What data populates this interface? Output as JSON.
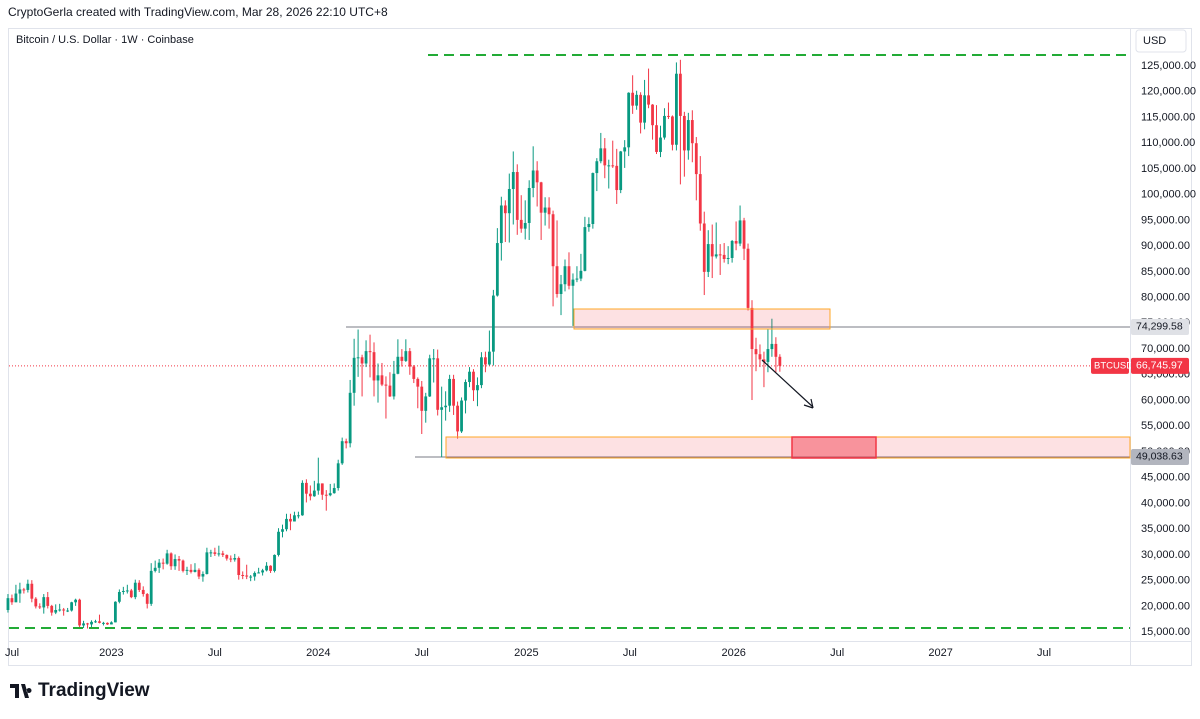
{
  "header": {
    "text": "CryptoGerla created with TradingView.com, Mar 28, 2026 22:10 UTC+8"
  },
  "footer": {
    "logo": "TradingView"
  },
  "chart_data": {
    "type": "candlestick",
    "title": "Bitcoin / U.S. Dollar · 1W · Coinbase",
    "currency": "USD",
    "up_color": "#089981",
    "down_color": "#f23645",
    "grid": false,
    "xlim": [
      -2,
      282
    ],
    "xticks": [
      {
        "value": -0.4,
        "label": "Jul"
      },
      {
        "value": 26,
        "label": "2023"
      },
      {
        "value": 52,
        "label": "Jul"
      },
      {
        "value": 78,
        "label": "2024"
      },
      {
        "value": 104,
        "label": "Jul"
      },
      {
        "value": 130.3,
        "label": "2025"
      },
      {
        "value": 156.3,
        "label": "Jul"
      },
      {
        "value": 182.4,
        "label": "2026"
      },
      {
        "value": 208.4,
        "label": "Jul"
      },
      {
        "value": 234.4,
        "label": "2027"
      },
      {
        "value": 260.4,
        "label": "Jul"
      }
    ],
    "ylim": [
      12500,
      128500
    ],
    "yticks": [
      {
        "value": 15000,
        "label": "15,000.00"
      },
      {
        "value": 20000,
        "label": "20,000.00"
      },
      {
        "value": 25000,
        "label": "25,000.00"
      },
      {
        "value": 30000,
        "label": "30,000.00"
      },
      {
        "value": 35000,
        "label": "35,000.00"
      },
      {
        "value": 40000,
        "label": "40,000.00"
      },
      {
        "value": 45000,
        "label": "45,000.00"
      },
      {
        "value": 50000,
        "label": "50,000.00"
      },
      {
        "value": 55000,
        "label": "55,000.00"
      },
      {
        "value": 60000,
        "label": "60,000.00"
      },
      {
        "value": 65000,
        "label": "65,000.00"
      },
      {
        "value": 70000,
        "label": "70,000.00"
      },
      {
        "value": 75000,
        "label": "75,000.00"
      },
      {
        "value": 80000,
        "label": "80,000.00"
      },
      {
        "value": 85000,
        "label": "85,000.00"
      },
      {
        "value": 90000,
        "label": "90,000.00"
      },
      {
        "value": 95000,
        "label": "95,000.00"
      },
      {
        "value": 100000,
        "label": "100,000.00"
      },
      {
        "value": 105000,
        "label": "105,000.00"
      },
      {
        "value": 110000,
        "label": "110,000.00"
      },
      {
        "value": 115000,
        "label": "115,000.00"
      },
      {
        "value": 120000,
        "label": "120,000.00"
      },
      {
        "value": 125000,
        "label": "125,000.00"
      }
    ],
    "levels": [
      {
        "value": 74299.58,
        "label": "74,299.58"
      },
      {
        "value": 49038.63,
        "label": "49,038.63"
      }
    ],
    "price_line": {
      "name": "BTCUSD",
      "value": 66745.97,
      "label": "66,745.97",
      "color": "#f23645"
    },
    "ohlc": [
      [
        19300,
        22400,
        18800,
        21600
      ],
      [
        21600,
        22300,
        20300,
        20800
      ],
      [
        20800,
        24200,
        20800,
        22500
      ],
      [
        22500,
        24600,
        20700,
        23300
      ],
      [
        23300,
        23600,
        22500,
        23200
      ],
      [
        23200,
        25200,
        22700,
        24400
      ],
      [
        24400,
        25100,
        20800,
        21500
      ],
      [
        21500,
        21800,
        19600,
        20000
      ],
      [
        20000,
        20600,
        19500,
        19800
      ],
      [
        19800,
        22400,
        18600,
        21800
      ],
      [
        21800,
        22800,
        19600,
        20100
      ],
      [
        20100,
        20300,
        18200,
        18800
      ],
      [
        18800,
        20400,
        18500,
        19300
      ],
      [
        19300,
        20500,
        19000,
        19400
      ],
      [
        19400,
        19700,
        18200,
        19200
      ],
      [
        19200,
        19700,
        18900,
        19200
      ],
      [
        19200,
        20900,
        19000,
        20800
      ],
      [
        20800,
        21500,
        20100,
        21300
      ],
      [
        21300,
        21500,
        15600,
        16300
      ],
      [
        16300,
        17200,
        15800,
        16700
      ],
      [
        16700,
        16800,
        15700,
        16500
      ],
      [
        16500,
        17300,
        15900,
        17000
      ],
      [
        17000,
        17400,
        16800,
        17100
      ],
      [
        17100,
        18400,
        16700,
        16800
      ],
      [
        16800,
        17000,
        16300,
        16800
      ],
      [
        16800,
        16900,
        16400,
        16500
      ],
      [
        16500,
        17100,
        16500,
        16900
      ],
      [
        16900,
        21000,
        16900,
        20900
      ],
      [
        20900,
        23300,
        20600,
        22800
      ],
      [
        22800,
        23800,
        22300,
        23000
      ],
      [
        23000,
        24200,
        22500,
        23100
      ],
      [
        23100,
        23400,
        21600,
        21800
      ],
      [
        21800,
        25200,
        21400,
        24600
      ],
      [
        24600,
        25100,
        22800,
        23200
      ],
      [
        23200,
        23900,
        21900,
        22400
      ],
      [
        22400,
        22600,
        19600,
        20500
      ],
      [
        20500,
        28400,
        20100,
        26900
      ],
      [
        26900,
        28900,
        26600,
        27500
      ],
      [
        27500,
        29200,
        26500,
        28500
      ],
      [
        28500,
        29300,
        27200,
        28300
      ],
      [
        28300,
        31000,
        28100,
        30300
      ],
      [
        30300,
        30500,
        27100,
        27800
      ],
      [
        27800,
        30100,
        27100,
        29200
      ],
      [
        29200,
        29800,
        26900,
        28900
      ],
      [
        28900,
        29100,
        26600,
        26900
      ],
      [
        26900,
        27700,
        26100,
        27100
      ],
      [
        27100,
        28200,
        26400,
        26700
      ],
      [
        26700,
        28400,
        26600,
        27100
      ],
      [
        27100,
        27400,
        25300,
        25800
      ],
      [
        25800,
        26800,
        24800,
        26300
      ],
      [
        26300,
        31400,
        26200,
        30500
      ],
      [
        30500,
        31000,
        29600,
        30500
      ],
      [
        30500,
        31400,
        29800,
        30200
      ],
      [
        30200,
        31800,
        29700,
        30300
      ],
      [
        30300,
        30800,
        29600,
        30000
      ],
      [
        30000,
        30100,
        28900,
        29300
      ],
      [
        29300,
        29900,
        28600,
        29100
      ],
      [
        29100,
        30200,
        28700,
        29400
      ],
      [
        29400,
        29700,
        25200,
        26100
      ],
      [
        26100,
        26800,
        25300,
        26000
      ],
      [
        26000,
        28100,
        25300,
        25800
      ],
      [
        25800,
        26100,
        24900,
        25800
      ],
      [
        25800,
        26800,
        25000,
        26500
      ],
      [
        26500,
        27500,
        26400,
        26600
      ],
      [
        26600,
        27300,
        26000,
        27000
      ],
      [
        27000,
        28600,
        26800,
        27900
      ],
      [
        27900,
        28000,
        26500,
        26900
      ],
      [
        26900,
        30100,
        26600,
        30000
      ],
      [
        30000,
        35200,
        29700,
        34500
      ],
      [
        34500,
        35900,
        33400,
        35000
      ],
      [
        35000,
        38000,
        34600,
        37000
      ],
      [
        37000,
        38000,
        34800,
        36500
      ],
      [
        36500,
        38400,
        36500,
        37700
      ],
      [
        37700,
        38400,
        37100,
        37700
      ],
      [
        37700,
        44500,
        37600,
        44000
      ],
      [
        44000,
        44700,
        40200,
        41900
      ],
      [
        41900,
        43500,
        40600,
        41400
      ],
      [
        41400,
        44400,
        41300,
        42500
      ],
      [
        42500,
        48900,
        41700,
        43900
      ],
      [
        43900,
        43900,
        40700,
        41700
      ],
      [
        41700,
        42600,
        38600,
        41600
      ],
      [
        41600,
        43800,
        41400,
        42000
      ],
      [
        42000,
        43900,
        41900,
        43000
      ],
      [
        43000,
        48500,
        42500,
        47800
      ],
      [
        47800,
        52800,
        47500,
        52100
      ],
      [
        52100,
        52600,
        50700,
        51700
      ],
      [
        51700,
        64000,
        50900,
        61500
      ],
      [
        61500,
        72000,
        59000,
        68300
      ],
      [
        68300,
        73800,
        64600,
        68400
      ],
      [
        68400,
        68900,
        60800,
        67200
      ],
      [
        67200,
        71700,
        66500,
        69600
      ],
      [
        69600,
        72800,
        64500,
        69400
      ],
      [
        69400,
        71300,
        60800,
        63900
      ],
      [
        63900,
        67200,
        59600,
        64900
      ],
      [
        64900,
        67300,
        62800,
        63100
      ],
      [
        63100,
        64700,
        56500,
        62900
      ],
      [
        62900,
        65500,
        60700,
        60800
      ],
      [
        60800,
        67700,
        60200,
        65200
      ],
      [
        65200,
        71900,
        65100,
        68500
      ],
      [
        68500,
        70000,
        66600,
        67700
      ],
      [
        67700,
        71900,
        67500,
        69600
      ],
      [
        69600,
        70200,
        65000,
        66600
      ],
      [
        66600,
        66900,
        63400,
        64200
      ],
      [
        64200,
        64500,
        58500,
        62700
      ],
      [
        62700,
        63800,
        53500,
        58000
      ],
      [
        58000,
        61500,
        55700,
        60800
      ],
      [
        60800,
        68900,
        60700,
        68200
      ],
      [
        68200,
        70000,
        63500,
        68200
      ],
      [
        68200,
        69900,
        57100,
        58200
      ],
      [
        58200,
        62700,
        49000,
        58700
      ],
      [
        58700,
        61800,
        56100,
        59000
      ],
      [
        59000,
        65000,
        57800,
        64200
      ],
      [
        64200,
        65000,
        57200,
        59000
      ],
      [
        59000,
        59800,
        52600,
        54000
      ],
      [
        54000,
        60600,
        53700,
        60000
      ],
      [
        60000,
        64100,
        57500,
        63600
      ],
      [
        63600,
        66500,
        62600,
        65600
      ],
      [
        65600,
        66100,
        59900,
        62000
      ],
      [
        62000,
        64500,
        58900,
        63000
      ],
      [
        63000,
        69400,
        62400,
        68400
      ],
      [
        68400,
        69500,
        65500,
        67000
      ],
      [
        67000,
        73600,
        66800,
        69500
      ],
      [
        69500,
        81500,
        66800,
        80400
      ],
      [
        80400,
        93500,
        80200,
        90600
      ],
      [
        90600,
        99600,
        87200,
        97900
      ],
      [
        97900,
        98900,
        90800,
        96400
      ],
      [
        96400,
        104100,
        90700,
        101100
      ],
      [
        101100,
        108400,
        94200,
        104400
      ],
      [
        104400,
        105900,
        92200,
        95100
      ],
      [
        95100,
        99900,
        92600,
        93400
      ],
      [
        93400,
        98900,
        91300,
        94500
      ],
      [
        94500,
        102800,
        91200,
        101300
      ],
      [
        101300,
        109400,
        99500,
        104700
      ],
      [
        104700,
        106500,
        97700,
        102400
      ],
      [
        102400,
        102500,
        91200,
        96500
      ],
      [
        96500,
        99500,
        94000,
        97500
      ],
      [
        97500,
        99500,
        93400,
        96200
      ],
      [
        96200,
        96900,
        78300,
        86100
      ],
      [
        86100,
        95000,
        80000,
        80700
      ],
      [
        80700,
        84400,
        76600,
        82600
      ],
      [
        82600,
        87400,
        81200,
        86100
      ],
      [
        86100,
        88800,
        81600,
        82300
      ],
      [
        82300,
        84700,
        74500,
        83500
      ],
      [
        83500,
        86100,
        83000,
        83700
      ],
      [
        83700,
        88500,
        83200,
        85200
      ],
      [
        85200,
        95700,
        85100,
        93700
      ],
      [
        93700,
        95600,
        92800,
        94300
      ],
      [
        94300,
        104300,
        93400,
        104200
      ],
      [
        104200,
        107100,
        100700,
        106500
      ],
      [
        106500,
        112000,
        106100,
        109000
      ],
      [
        109000,
        111000,
        103200,
        105700
      ],
      [
        105700,
        106800,
        101200,
        105700
      ],
      [
        105700,
        110500,
        105200,
        105600
      ],
      [
        105600,
        108900,
        98200,
        100900
      ],
      [
        100900,
        108500,
        100300,
        108400
      ],
      [
        108400,
        110600,
        105200,
        109200
      ],
      [
        109200,
        119900,
        107500,
        119800
      ],
      [
        119800,
        123200,
        115700,
        117300
      ],
      [
        117300,
        120200,
        116500,
        119400
      ],
      [
        119400,
        119900,
        111900,
        114000
      ],
      [
        114000,
        122300,
        112700,
        119300
      ],
      [
        119300,
        124500,
        116800,
        117500
      ],
      [
        117500,
        117600,
        110700,
        113500
      ],
      [
        113500,
        117400,
        107900,
        108300
      ],
      [
        108300,
        113400,
        107300,
        111100
      ],
      [
        111100,
        116800,
        110700,
        115300
      ],
      [
        115300,
        117900,
        114700,
        115200
      ],
      [
        115200,
        115400,
        108600,
        109700
      ],
      [
        109700,
        125700,
        108600,
        123500
      ],
      [
        123500,
        126200,
        102000,
        115300
      ],
      [
        115300,
        116100,
        103500,
        108600
      ],
      [
        108600,
        115900,
        106800,
        114500
      ],
      [
        114500,
        116400,
        106300,
        110000
      ],
      [
        110000,
        111200,
        98900,
        104000
      ],
      [
        104000,
        107500,
        93000,
        94400
      ],
      [
        94400,
        96700,
        80500,
        85000
      ],
      [
        85000,
        93100,
        84000,
        90400
      ],
      [
        90400,
        94200,
        83800,
        88000
      ],
      [
        88000,
        94600,
        87600,
        88400
      ],
      [
        88400,
        90400,
        84400,
        88300
      ],
      [
        88300,
        90600,
        86800,
        87500
      ],
      [
        87500,
        90000,
        86500,
        87700
      ],
      [
        87700,
        91200,
        86800,
        91000
      ],
      [
        91000,
        94800,
        89200,
        90500
      ],
      [
        90500,
        97900,
        90000,
        95000
      ],
      [
        95000,
        95500,
        87300,
        89500
      ],
      [
        89500,
        90500,
        77500,
        78000
      ],
      [
        78000,
        79500,
        60100,
        70000
      ],
      [
        70000,
        72200,
        65700,
        69000
      ],
      [
        69000,
        70900,
        66500,
        68000
      ],
      [
        68000,
        69500,
        62600,
        67500
      ],
      [
        67500,
        74000,
        65500,
        70000
      ],
      [
        70000,
        75900,
        68500,
        71000
      ],
      [
        71000,
        72300,
        65500,
        68500
      ],
      [
        68500,
        69000,
        65600,
        66745.97
      ]
    ]
  }
}
